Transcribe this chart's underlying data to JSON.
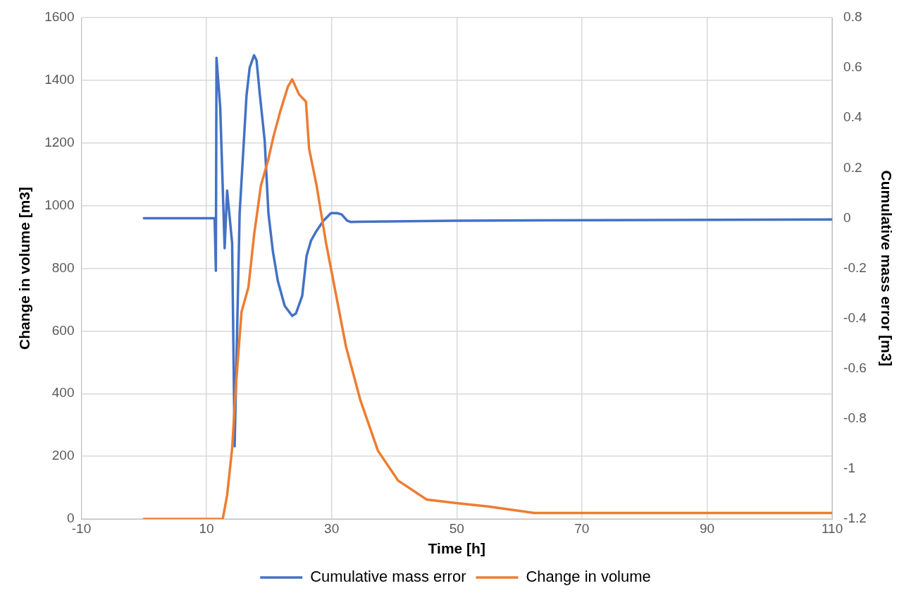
{
  "chart_data": {
    "type": "line",
    "xlabel": "Time [h]",
    "ylabel": "Change in volume [m3]",
    "y2label": "Cumulative mass error [m3]",
    "xlim": [
      -10,
      110
    ],
    "xticks": [
      -10,
      10,
      30,
      50,
      70,
      90,
      110
    ],
    "ylim": [
      0,
      1600
    ],
    "yticks": [
      0,
      200,
      400,
      600,
      800,
      1000,
      1200,
      1400,
      1600
    ],
    "y2lim": [
      -1.2,
      0.8
    ],
    "y2ticks": [
      -1.2,
      -1,
      -0.8,
      -0.6,
      -0.4,
      -0.2,
      0,
      0.2,
      0.4,
      0.6,
      0.8
    ],
    "grid": true,
    "legend": "bottom",
    "marker": "none",
    "line_style": "solid",
    "series": [
      {
        "name": "Cumulative mass error",
        "color": "#4472c4",
        "axis": "y2",
        "x": [
          0,
          11.3,
          11.5,
          11.6,
          12.2,
          12.9,
          13.3,
          14.1,
          14.5,
          15.3,
          16.4,
          16.9,
          17.6,
          18,
          18.5,
          19.3,
          19.9,
          20.6,
          21.4,
          22.5,
          23.7,
          24.3,
          25.3,
          26,
          26.7,
          27.6,
          28.7,
          29.9,
          30.9,
          31.6,
          32.5,
          33,
          50,
          110
        ],
        "values": [
          0,
          0,
          -0.21,
          0.64,
          0.44,
          -0.12,
          0.11,
          -0.1,
          -0.91,
          0.02,
          0.49,
          0.6,
          0.65,
          0.63,
          0.5,
          0.31,
          0.02,
          -0.13,
          -0.25,
          -0.35,
          -0.39,
          -0.38,
          -0.31,
          -0.15,
          -0.09,
          -0.05,
          -0.01,
          0.02,
          0.02,
          0.015,
          -0.01,
          -0.015,
          -0.01,
          -0.005
        ]
      },
      {
        "name": "Change in volume",
        "color": "#ed7d31",
        "x": [
          0,
          12.6,
          13.3,
          14.1,
          14.7,
          15.6,
          16.7,
          17.6,
          18.7,
          19.9,
          20.7,
          21.8,
          23,
          23.7,
          24.8,
          25.9,
          26.4,
          27.6,
          29.1,
          32.3,
          34.6,
          37.4,
          40.6,
          45.2,
          50.2,
          55,
          62.4,
          110
        ],
        "values": [
          0,
          0,
          76,
          225,
          424,
          661,
          739,
          905,
          1064,
          1149,
          1220,
          1301,
          1379,
          1403,
          1355,
          1332,
          1182,
          1064,
          882,
          550,
          379,
          218,
          123,
          62,
          50,
          40,
          19,
          19
        ]
      }
    ]
  }
}
